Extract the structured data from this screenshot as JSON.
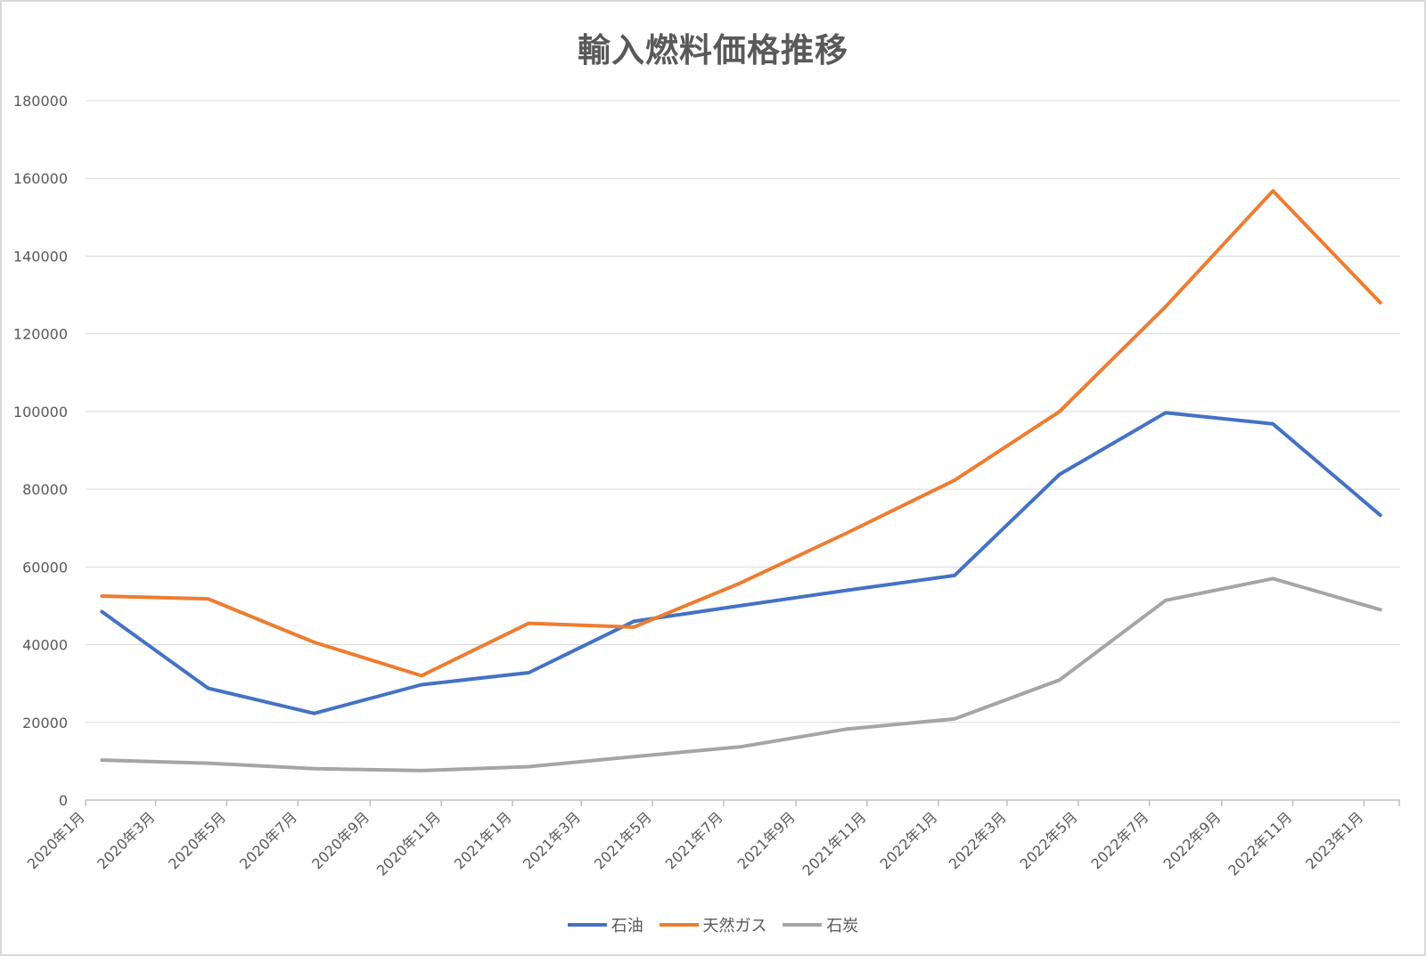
{
  "chart_data": {
    "type": "line",
    "title": "輸入燃料価格推移",
    "xlabel": "",
    "ylabel": "",
    "ylim": [
      0,
      180000
    ],
    "yticks": [
      0,
      20000,
      40000,
      60000,
      80000,
      100000,
      120000,
      140000,
      160000,
      180000
    ],
    "grid": true,
    "legend_position": "bottom",
    "x_tick_labels": [
      "2020年1月",
      "2020年3月",
      "2020年5月",
      "2020年7月",
      "2020年9月",
      "2020年11月",
      "2021年1月",
      "2021年3月",
      "2021年5月",
      "2021年7月",
      "2021年9月",
      "2021年11月",
      "2022年1月",
      "2022年3月",
      "2022年5月",
      "2022年7月",
      "2022年9月",
      "2022年11月",
      "2023年1月"
    ],
    "x": [
      "2020-01-15",
      "2020-04-15",
      "2020-07-15",
      "2020-10-15",
      "2021-01-15",
      "2021-04-15",
      "2021-07-15",
      "2021-10-15",
      "2022-01-15",
      "2022-04-15",
      "2022-07-15",
      "2022-10-15",
      "2023-01-15"
    ],
    "series": [
      {
        "name": "石油",
        "color": "#4472c4",
        "values": [
          48500,
          28800,
          22300,
          29700,
          32800,
          46000,
          50000,
          54000,
          57800,
          83800,
          99700,
          96800,
          73300
        ]
      },
      {
        "name": "天然ガス",
        "color": "#ed7d31",
        "values": [
          52500,
          51800,
          40600,
          32000,
          45500,
          44500,
          55800,
          68800,
          82300,
          100000,
          127000,
          156800,
          128000
        ]
      },
      {
        "name": "石炭",
        "color": "#a5a5a5",
        "values": [
          10300,
          9500,
          8100,
          7600,
          8600,
          11200,
          13700,
          18300,
          20900,
          30900,
          51400,
          57000,
          49000
        ]
      }
    ]
  }
}
